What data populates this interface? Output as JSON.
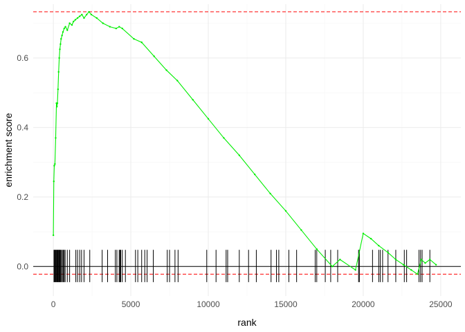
{
  "chart_data": {
    "type": "line",
    "title": "",
    "xlabel": "rank",
    "ylabel": "enrichment score",
    "xlim": [
      -1300,
      26300
    ],
    "ylim": [
      -0.085,
      0.755
    ],
    "x_ticks": [
      0,
      5000,
      10000,
      15000,
      20000,
      25000
    ],
    "y_ticks": [
      0.0,
      0.2,
      0.4,
      0.6
    ],
    "y_tick_labels": [
      "0.0",
      "0.2",
      "0.4",
      "0.6"
    ],
    "grid": true,
    "legend": "none",
    "colors": {
      "curve": "#00ee00",
      "max_line": "#ff0000",
      "min_line": "#ff0000",
      "zero_line": "#000000",
      "hits": "#000000",
      "grid_major": "#ebebeb",
      "grid_minor": "#f5f5f5"
    },
    "max_es": 0.733,
    "min_es": -0.022,
    "hit_range": [
      -0.045,
      0.048
    ],
    "series": [
      {
        "x": [
          0,
          30,
          60,
          100,
          150,
          200,
          230,
          260,
          300,
          340,
          380,
          420,
          460,
          500,
          560,
          620,
          700,
          780,
          900,
          1050,
          1200,
          1300,
          1420,
          1560,
          1700,
          1840,
          1980,
          2150,
          2300,
          2450,
          2800,
          3200,
          3650,
          4050,
          4250,
          4450,
          5200,
          5700,
          6500,
          7300,
          8000,
          9000,
          10000,
          11000,
          12000,
          13000,
          14000,
          15000,
          16000,
          17000,
          18000,
          18500,
          19500,
          20000,
          20500,
          21000,
          21600,
          22100,
          22600,
          23100,
          23500,
          23750,
          24000,
          24300,
          24700
        ],
        "y": [
          0.09,
          0.245,
          0.29,
          0.295,
          0.37,
          0.47,
          0.46,
          0.47,
          0.51,
          0.56,
          0.6,
          0.625,
          0.64,
          0.655,
          0.665,
          0.675,
          0.685,
          0.69,
          0.68,
          0.7,
          0.695,
          0.705,
          0.71,
          0.715,
          0.72,
          0.725,
          0.715,
          0.725,
          0.733,
          0.725,
          0.715,
          0.7,
          0.69,
          0.685,
          0.69,
          0.685,
          0.655,
          0.645,
          0.605,
          0.565,
          0.535,
          0.48,
          0.425,
          0.37,
          0.32,
          0.265,
          0.21,
          0.16,
          0.105,
          0.05,
          0.0,
          0.02,
          -0.01,
          0.095,
          0.08,
          0.06,
          0.04,
          0.02,
          0.005,
          -0.01,
          -0.022,
          0.02,
          0.01,
          0.02,
          0.005
        ]
      }
    ],
    "hits_x": [
      40,
      80,
      130,
      170,
      220,
      260,
      300,
      340,
      380,
      420,
      460,
      520,
      580,
      640,
      700,
      760,
      900,
      1050,
      1450,
      1560,
      1700,
      1820,
      1980,
      2350,
      3150,
      3500,
      4000,
      4100,
      4250,
      4300,
      4350,
      4450,
      4650,
      5300,
      5450,
      5700,
      5900,
      6050,
      6450,
      7350,
      7500,
      7850,
      8050,
      9900,
      10500,
      11150,
      11250,
      12000,
      12600,
      13100,
      14050,
      14400,
      14550,
      15200,
      15700,
      16900,
      17000,
      17550,
      17900,
      18350,
      19700,
      19750,
      20600,
      21000,
      21100,
      21250,
      21600,
      22100,
      22650,
      22800,
      23600,
      23700,
      23800,
      24300
    ]
  }
}
